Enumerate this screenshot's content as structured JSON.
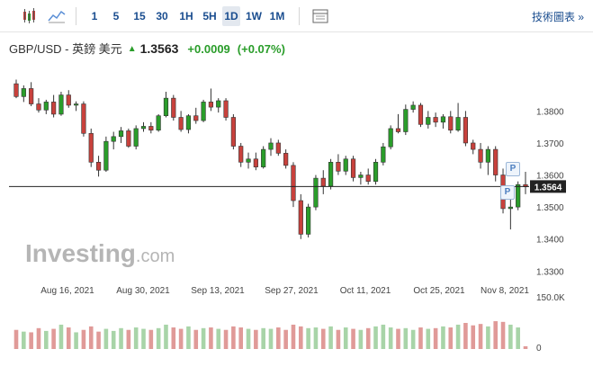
{
  "toolbar": {
    "timeframes": [
      "1",
      "5",
      "15",
      "30",
      "1H",
      "5H",
      "1D",
      "1W",
      "1M"
    ],
    "active": "1D",
    "tech_link": "技術圖表 »"
  },
  "header": {
    "symbol": "GBP/USD - 英鎊 美元",
    "price": "1.3563",
    "change": "+0.0009",
    "change_pct": "(+0.07%)"
  },
  "watermark": {
    "brand": "Investing",
    "suffix": ".com"
  },
  "flags": [
    "P",
    "P"
  ],
  "colors": {
    "up": "#2a9d2a",
    "down": "#c8413c",
    "up_vol": "#a8d4a8",
    "down_vol": "#e09a98",
    "accent": "#1a4d8f"
  },
  "chart_data": {
    "type": "candlestick",
    "x_tick_labels": [
      "Aug 16, 2021",
      "Aug 30, 2021",
      "Sep 13, 2021",
      "Sep 27, 2021",
      "Oct 11, 2021",
      "Oct 25, 2021",
      "Nov 8, 2021"
    ],
    "y_tick_labels": [
      "1.3800",
      "1.3700",
      "1.3600",
      "1.3500",
      "1.3400",
      "1.3300"
    ],
    "ylim": [
      1.327,
      1.3905
    ],
    "current_price_label": "1.3564",
    "current_price": 1.3564,
    "volume_axis_labels": [
      "150.0K",
      "0"
    ],
    "candles": [
      [
        1.3885,
        1.3898,
        1.384,
        1.3845
      ],
      [
        1.3845,
        1.388,
        1.3828,
        1.387
      ],
      [
        1.387,
        1.389,
        1.3815,
        1.3822
      ],
      [
        1.3822,
        1.384,
        1.3795,
        1.3803
      ],
      [
        1.3803,
        1.3835,
        1.379,
        1.3828
      ],
      [
        1.3828,
        1.385,
        1.378,
        1.379
      ],
      [
        1.379,
        1.386,
        1.3785,
        1.385
      ],
      [
        1.385,
        1.3865,
        1.381,
        1.3818
      ],
      [
        1.3818,
        1.383,
        1.38,
        1.3822
      ],
      [
        1.3822,
        1.383,
        1.372,
        1.373
      ],
      [
        1.373,
        1.3745,
        1.3625,
        1.364
      ],
      [
        1.364,
        1.366,
        1.3595,
        1.3615
      ],
      [
        1.3615,
        1.372,
        1.361,
        1.3705
      ],
      [
        1.3705,
        1.3735,
        1.368,
        1.372
      ],
      [
        1.372,
        1.375,
        1.37,
        1.3738
      ],
      [
        1.3738,
        1.3745,
        1.3685,
        1.369
      ],
      [
        1.369,
        1.3755,
        1.368,
        1.3745
      ],
      [
        1.3745,
        1.3765,
        1.3735,
        1.3752
      ],
      [
        1.3752,
        1.3765,
        1.373,
        1.374
      ],
      [
        1.374,
        1.379,
        1.3735,
        1.3785
      ],
      [
        1.3785,
        1.386,
        1.378,
        1.384
      ],
      [
        1.384,
        1.385,
        1.377,
        1.378
      ],
      [
        1.378,
        1.38,
        1.3735,
        1.3742
      ],
      [
        1.3742,
        1.379,
        1.373,
        1.3785
      ],
      [
        1.3785,
        1.381,
        1.376,
        1.377
      ],
      [
        1.377,
        1.3835,
        1.3765,
        1.3828
      ],
      [
        1.3828,
        1.387,
        1.38,
        1.3812
      ],
      [
        1.3812,
        1.384,
        1.3795,
        1.3832
      ],
      [
        1.3832,
        1.384,
        1.377,
        1.378
      ],
      [
        1.378,
        1.379,
        1.368,
        1.369
      ],
      [
        1.369,
        1.37,
        1.3625,
        1.364
      ],
      [
        1.364,
        1.367,
        1.362,
        1.365
      ],
      [
        1.365,
        1.367,
        1.3615,
        1.3625
      ],
      [
        1.3625,
        1.369,
        1.362,
        1.368
      ],
      [
        1.368,
        1.3715,
        1.366,
        1.37
      ],
      [
        1.37,
        1.371,
        1.366,
        1.3668
      ],
      [
        1.3668,
        1.368,
        1.362,
        1.363
      ],
      [
        1.363,
        1.364,
        1.35,
        1.352
      ],
      [
        1.352,
        1.354,
        1.34,
        1.3415
      ],
      [
        1.3415,
        1.351,
        1.3405,
        1.35
      ],
      [
        1.35,
        1.36,
        1.349,
        1.359
      ],
      [
        1.359,
        1.3615,
        1.354,
        1.3565
      ],
      [
        1.3565,
        1.365,
        1.3555,
        1.364
      ],
      [
        1.364,
        1.3665,
        1.36,
        1.3612
      ],
      [
        1.3612,
        1.366,
        1.36,
        1.365
      ],
      [
        1.365,
        1.366,
        1.358,
        1.3592
      ],
      [
        1.3592,
        1.361,
        1.357,
        1.36
      ],
      [
        1.36,
        1.362,
        1.357,
        1.358
      ],
      [
        1.358,
        1.365,
        1.357,
        1.364
      ],
      [
        1.364,
        1.37,
        1.363,
        1.3688
      ],
      [
        1.3688,
        1.3755,
        1.368,
        1.3745
      ],
      [
        1.3745,
        1.379,
        1.373,
        1.3735
      ],
      [
        1.3735,
        1.382,
        1.3725,
        1.3805
      ],
      [
        1.3805,
        1.383,
        1.3795,
        1.3818
      ],
      [
        1.3818,
        1.3825,
        1.375,
        1.3758
      ],
      [
        1.3758,
        1.38,
        1.3745,
        1.378
      ],
      [
        1.378,
        1.3795,
        1.375,
        1.3765
      ],
      [
        1.3765,
        1.379,
        1.3745,
        1.3782
      ],
      [
        1.3782,
        1.38,
        1.373,
        1.374
      ],
      [
        1.374,
        1.3825,
        1.3735,
        1.378
      ],
      [
        1.378,
        1.38,
        1.369,
        1.37
      ],
      [
        1.37,
        1.371,
        1.3665,
        1.368
      ],
      [
        1.368,
        1.37,
        1.362,
        1.364
      ],
      [
        1.364,
        1.369,
        1.36,
        1.368
      ],
      [
        1.368,
        1.369,
        1.358,
        1.36
      ],
      [
        1.36,
        1.362,
        1.348,
        1.3495
      ],
      [
        1.3495,
        1.354,
        1.343,
        1.35
      ],
      [
        1.35,
        1.358,
        1.349,
        1.357
      ],
      [
        1.357,
        1.361,
        1.354,
        1.3563
      ]
    ],
    "volumes": [
      55,
      50,
      48,
      60,
      52,
      58,
      70,
      62,
      48,
      55,
      65,
      50,
      58,
      52,
      60,
      55,
      62,
      58,
      55,
      60,
      70,
      62,
      58,
      65,
      55,
      60,
      62,
      58,
      55,
      65,
      62,
      58,
      55,
      60,
      58,
      62,
      55,
      70,
      65,
      60,
      62,
      58,
      65,
      55,
      62,
      58,
      55,
      60,
      65,
      70,
      62,
      58,
      60,
      55,
      62,
      58,
      60,
      65,
      62,
      70,
      75,
      68,
      72,
      65,
      80,
      78,
      70,
      62,
      8
    ]
  }
}
